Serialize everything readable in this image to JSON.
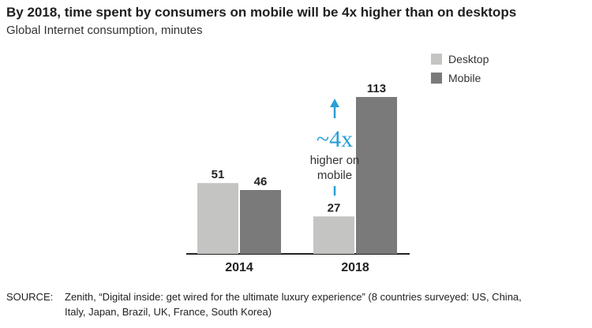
{
  "header": {
    "title": "By 2018, time spent by consumers on mobile will be 4x higher than on desktops",
    "subtitle": "Global Internet consumption, minutes"
  },
  "chart_data": {
    "type": "bar",
    "title": "By 2018, time spent by consumers on mobile will be 4x higher than on desktops",
    "subtitle": "Global Internet consumption, minutes",
    "categories": [
      "2014",
      "2018"
    ],
    "series": [
      {
        "name": "Desktop",
        "values": [
          51,
          27
        ],
        "color": "#c4c4c2"
      },
      {
        "name": "Mobile",
        "values": [
          46,
          113
        ],
        "color": "#7a7a7a"
      }
    ],
    "ylim": [
      0,
      120
    ],
    "xlabel": "",
    "ylabel": "",
    "grid": false,
    "legend": "top-right",
    "annotation": {
      "big": "~4x",
      "line1": "higher on",
      "line2": "mobile",
      "color": "#2a9fd6"
    }
  },
  "footer": {
    "source_label": "SOURCE:",
    "source_line1": "Zenith, “Digital inside: get wired for the ultimate luxury experience” (8 countries surveyed: US, China,",
    "source_line2": "Italy, Japan, Brazil, UK, France, South Korea)"
  }
}
